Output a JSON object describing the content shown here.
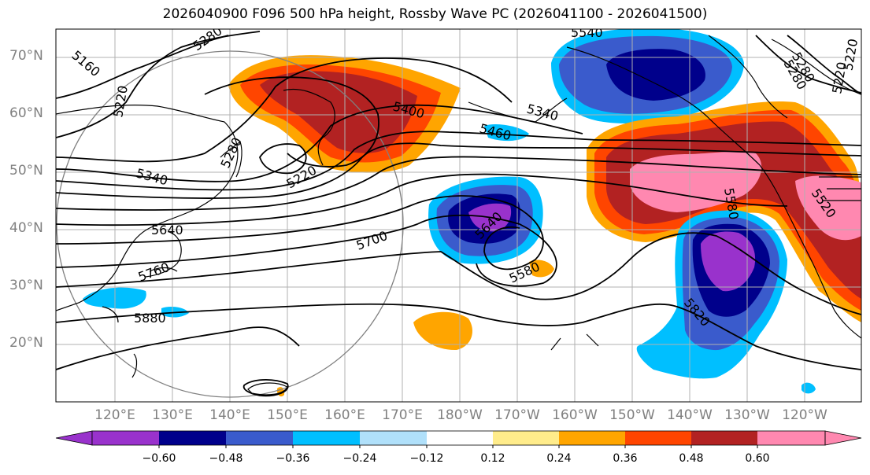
{
  "title": "2026040900 F096 500 hPa height, Rossby Wave PC (2026041100 - 2026041500)",
  "lat_labels": [
    "70°N",
    "60°N",
    "50°N",
    "40°N",
    "30°N",
    "20°N"
  ],
  "lon_labels": [
    "120°E",
    "130°E",
    "140°E",
    "150°E",
    "160°E",
    "170°E",
    "180°W",
    "170°W",
    "160°W",
    "150°W",
    "140°W",
    "130°W",
    "120°W"
  ],
  "contour_labels": [
    "5160",
    "5220",
    "5280",
    "5220",
    "5280",
    "5400",
    "5340",
    "5460",
    "5220",
    "5280",
    "5340",
    "5640",
    "5700",
    "5640",
    "5580",
    "5760",
    "5880",
    "5580",
    "5820",
    "5520",
    "5280",
    "5220",
    "5540"
  ],
  "colorbar": {
    "ticks": [
      "−0.60",
      "−0.48",
      "−0.36",
      "−0.24",
      "−0.12",
      "0.12",
      "0.24",
      "0.36",
      "0.48",
      "0.60"
    ],
    "colors": [
      "#9932cc",
      "#00008b",
      "#3a5bcc",
      "#00bfff",
      "#b0e0fa",
      "#ffffff",
      "#ffec8b",
      "#ffa500",
      "#ff4500",
      "#b22222",
      "#ff88b0",
      "#ff88b0"
    ]
  }
}
